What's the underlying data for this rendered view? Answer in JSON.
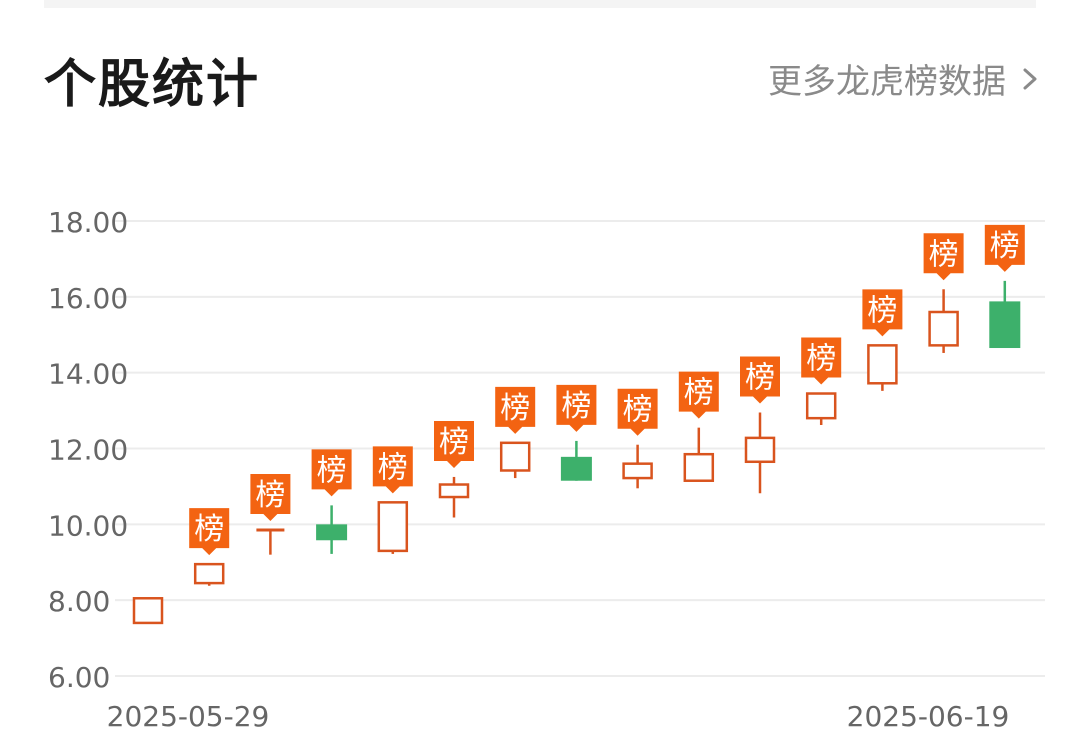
{
  "header": {
    "title": "个股统计",
    "more_link_label": "更多龙虎榜数据",
    "more_link_icon": "chevron-right-icon"
  },
  "colors": {
    "up": "#d9541e",
    "down": "#3db06b",
    "badge": "#f36312",
    "grid": "#ececec",
    "axis_text": "#666666"
  },
  "chart_data": {
    "type": "candlestick",
    "title": "",
    "xlabel": "",
    "ylabel": "",
    "ylim": [
      6,
      18
    ],
    "yticks": [
      "18.00",
      "16.00",
      "14.00",
      "12.00",
      "10.00",
      "8.00",
      "6.00"
    ],
    "ytick_values": [
      18,
      16,
      14,
      12,
      10,
      8,
      6
    ],
    "xtick_labels": [
      "2025-05-29",
      "2025-06-19"
    ],
    "grid": true,
    "badge_label": "榜",
    "candles": [
      {
        "open": 7.4,
        "close": 8.05,
        "high": 8.05,
        "low": 7.4,
        "direction": "up",
        "badge": false
      },
      {
        "open": 8.45,
        "close": 8.95,
        "high": 8.95,
        "low": 8.38,
        "direction": "up",
        "badge": true
      },
      {
        "open": 9.82,
        "close": 9.85,
        "high": 9.85,
        "low": 9.2,
        "direction": "up",
        "badge": true
      },
      {
        "open": 10.0,
        "close": 9.58,
        "high": 10.5,
        "low": 9.22,
        "direction": "down",
        "badge": true
      },
      {
        "open": 9.3,
        "close": 10.58,
        "high": 10.58,
        "low": 9.22,
        "direction": "up",
        "badge": true
      },
      {
        "open": 10.72,
        "close": 11.05,
        "high": 11.25,
        "low": 10.18,
        "direction": "up",
        "badge": true
      },
      {
        "open": 11.42,
        "close": 12.15,
        "high": 12.15,
        "low": 11.22,
        "direction": "up",
        "badge": true
      },
      {
        "open": 11.78,
        "close": 11.15,
        "high": 12.2,
        "low": 11.15,
        "direction": "down",
        "badge": true
      },
      {
        "open": 11.22,
        "close": 11.6,
        "high": 12.1,
        "low": 10.95,
        "direction": "up",
        "badge": true
      },
      {
        "open": 11.15,
        "close": 11.85,
        "high": 12.55,
        "low": 11.15,
        "direction": "up",
        "badge": true
      },
      {
        "open": 11.65,
        "close": 12.28,
        "high": 12.95,
        "low": 10.82,
        "direction": "up",
        "badge": true
      },
      {
        "open": 12.8,
        "close": 13.45,
        "high": 13.45,
        "low": 12.62,
        "direction": "up",
        "badge": true
      },
      {
        "open": 13.72,
        "close": 14.72,
        "high": 14.72,
        "low": 13.52,
        "direction": "up",
        "badge": true
      },
      {
        "open": 14.72,
        "close": 15.6,
        "high": 16.2,
        "low": 14.52,
        "direction": "up",
        "badge": true
      },
      {
        "open": 15.88,
        "close": 14.65,
        "high": 16.42,
        "low": 14.65,
        "direction": "down",
        "badge": true
      }
    ]
  }
}
